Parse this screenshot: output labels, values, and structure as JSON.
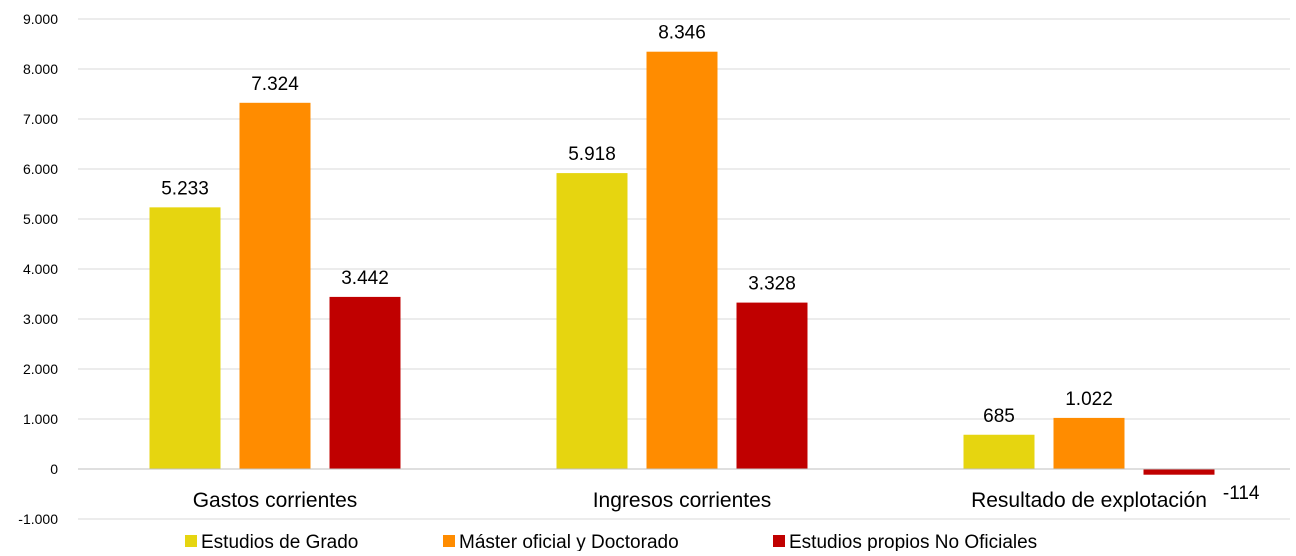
{
  "chart_data": {
    "type": "bar",
    "categories": [
      "Gastos corrientes",
      "Ingresos corrientes",
      "Resultado de explotación"
    ],
    "series": [
      {
        "name": "Estudios de Grado",
        "values": [
          5233,
          5918,
          685
        ],
        "labels": [
          "5.233",
          "5.918",
          "685"
        ],
        "color": "#e6d510"
      },
      {
        "name": "Máster oficial y Doctorado",
        "values": [
          7324,
          8346,
          1022
        ],
        "labels": [
          "7.324",
          "8.346",
          "1.022"
        ],
        "color": "#ff8c00"
      },
      {
        "name": "Estudios propios No Oficiales",
        "values": [
          3442,
          3328,
          -114
        ],
        "labels": [
          "3.442",
          "3.328",
          "-114"
        ],
        "color": "#c00000"
      }
    ],
    "ylim": [
      -1000,
      9000
    ],
    "yticks": [
      {
        "value": 9000,
        "label": "9.000"
      },
      {
        "value": 8000,
        "label": "8.000"
      },
      {
        "value": 7000,
        "label": "7.000"
      },
      {
        "value": 6000,
        "label": "6.000"
      },
      {
        "value": 5000,
        "label": "5.000"
      },
      {
        "value": 4000,
        "label": "4.000"
      },
      {
        "value": 3000,
        "label": "3.000"
      },
      {
        "value": 2000,
        "label": "2.000"
      },
      {
        "value": 1000,
        "label": "1.000"
      },
      {
        "value": 0,
        "label": "0"
      },
      {
        "value": -1000,
        "label": "-1.000"
      }
    ],
    "grid": true,
    "legend_position": "bottom",
    "title": "",
    "xlabel": "",
    "ylabel": ""
  }
}
